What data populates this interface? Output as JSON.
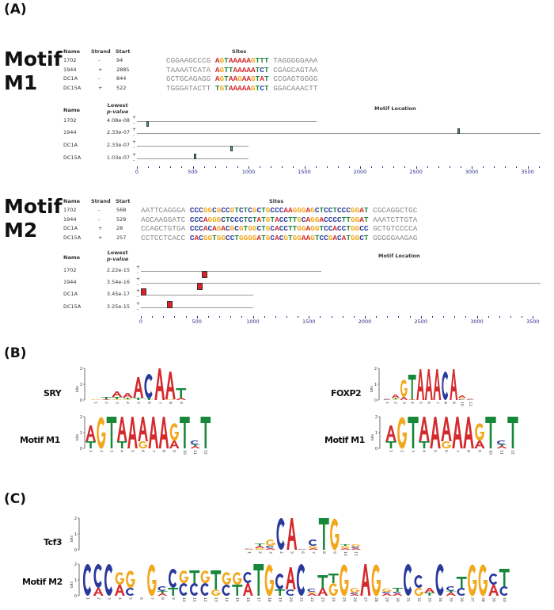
{
  "panel_labels": {
    "a": "(A)",
    "b": "(B)",
    "c": "(C)"
  },
  "colors": {
    "A": "#d42a2e",
    "C": "#2a3a9c",
    "G": "#f2a81d",
    "T": "#17873a",
    "m1_marker": "#3aa6a8",
    "m2_marker": "#e0202a",
    "axis_label": "#2a2a8a"
  },
  "site_table_headers": {
    "name": "Name",
    "strand": "Strand",
    "start": "Start",
    "sites": "Sites"
  },
  "location_headers": {
    "name": "Name",
    "lowest": "Lowest",
    "pvalue": "p-value",
    "motif_location": "Motif Location"
  },
  "strand_marks": {
    "plus": "+",
    "minus": "-"
  },
  "axis_ticks": [
    "0",
    "500",
    "1000",
    "1500",
    "2000",
    "2500",
    "3000",
    "3500"
  ],
  "motif_m1": {
    "title_line1": "Motif",
    "title_line2": "M1",
    "sites": [
      {
        "name": "1702",
        "strand": "-",
        "start": "94",
        "left": "CGGAAGCCCG",
        "core": "AGTAAAAAGTTT",
        "right": "TAGGGGGAAA"
      },
      {
        "name": "1944",
        "strand": "+",
        "start": "2885",
        "left": "TAAAATCATA",
        "core": "AGTTAAAAATCT",
        "right": "CGAGCAGTAA"
      },
      {
        "name": "DC1A",
        "strand": "-",
        "start": "844",
        "left": "GCTGCAGAGG",
        "core": "AGTAAGAAGTAT",
        "right": "CCGAGTGGGG"
      },
      {
        "name": "DC15A",
        "strand": "+",
        "start": "522",
        "left": "TGGGATACTT",
        "core": "TGTAAAAAGTCT",
        "right": "GGACAAACTT"
      }
    ],
    "locations": [
      {
        "name": "1702",
        "pvalue": "4.08e-08",
        "length": 1610,
        "position": 94,
        "strand": "-"
      },
      {
        "name": "1944",
        "pvalue": "2.33e-07",
        "length": 3800,
        "position": 2885,
        "strand": "+"
      },
      {
        "name": "DC1A",
        "pvalue": "2.33e-07",
        "length": 1000,
        "position": 844,
        "strand": "-"
      },
      {
        "name": "DC15A",
        "pvalue": "1.03e-07",
        "length": 1000,
        "position": 522,
        "strand": "+"
      }
    ]
  },
  "motif_m2": {
    "title_line1": "Motif",
    "title_line2": "M2",
    "sites": [
      {
        "name": "1702",
        "strand": "-",
        "start": "568",
        "left": "AATTCAGGGA",
        "core": "CCCGGCGCCGTCTCGCTGCCCAAGGGAGCTCCTCCCGGAT",
        "right": "CGCAGGCTGC"
      },
      {
        "name": "1944",
        "strand": "-",
        "start": "529",
        "left": "AGCAAGGATC",
        "core": "CCCAGGGCTCCCTCTATGTACCTTGCAGGACCCCTTGGAT",
        "right": "AAATCTTGTA"
      },
      {
        "name": "DC1A",
        "strand": "+",
        "start": "28",
        "left": "CCAGCTGTGA",
        "core": "CCCACAGACGCGTGGCTGCACCTTGGAGGTCCACCTGGCC",
        "right": "GCTGTCCCCA"
      },
      {
        "name": "DC15A",
        "strand": "+",
        "start": "257",
        "left": "CCTCCTCACC",
        "core": "CACGGTGGCCTGGGGATGCACGTGGAAGTCCGACATGGCT",
        "right": "GGGGGAAGAG"
      }
    ],
    "locations": [
      {
        "name": "1702",
        "pvalue": "2.22e-15",
        "length": 1610,
        "position": 568,
        "strand": "-"
      },
      {
        "name": "1944",
        "pvalue": "3.54e-16",
        "length": 3800,
        "position": 529,
        "strand": "-"
      },
      {
        "name": "DC1A",
        "pvalue": "3.45e-17",
        "length": 1000,
        "position": 28,
        "strand": "+"
      },
      {
        "name": "DC15A",
        "pvalue": "3.25e-15",
        "length": 1000,
        "position": 257,
        "strand": "+"
      }
    ]
  },
  "logo_axis": {
    "y_label": "bits",
    "y_ticks": [
      "0",
      "1",
      "2"
    ]
  },
  "logos": {
    "sry": {
      "label": "SRY",
      "columns": [
        [
          [
            "G",
            0.05
          ]
        ],
        [
          [
            "A",
            0.05
          ],
          [
            "T",
            0.15
          ]
        ],
        [
          [
            "G",
            0.05
          ],
          [
            "T",
            0.15
          ],
          [
            "A",
            0.35
          ]
        ],
        [
          [
            "G",
            0.05
          ],
          [
            "T",
            0.1
          ],
          [
            "A",
            0.3
          ]
        ],
        [
          [
            "T",
            0.15
          ],
          [
            "A",
            1.3
          ]
        ],
        [
          [
            "T",
            0.1
          ],
          [
            "C",
            1.55
          ]
        ],
        [
          [
            "A",
            2.0
          ]
        ],
        [
          [
            "G",
            0.05
          ],
          [
            "A",
            1.75
          ]
        ],
        [
          [
            "A",
            0.15
          ],
          [
            "T",
            0.6
          ]
        ]
      ]
    },
    "foxp2": {
      "label": "FOXP2",
      "columns": [
        [
          [
            "C",
            0.04
          ],
          [
            "A",
            0.05
          ]
        ],
        [
          [
            "G",
            0.05
          ],
          [
            "T",
            0.1
          ],
          [
            "A",
            0.2
          ]
        ],
        [
          [
            "A",
            0.2
          ],
          [
            "G",
            1.1
          ]
        ],
        [
          [
            "A",
            0.05
          ],
          [
            "T",
            1.55
          ]
        ],
        [
          [
            "A",
            1.95
          ]
        ],
        [
          [
            "A",
            1.95
          ]
        ],
        [
          [
            "A",
            1.95
          ]
        ],
        [
          [
            "C",
            1.8
          ]
        ],
        [
          [
            "A",
            1.95
          ]
        ],
        [
          [
            "C",
            0.05
          ],
          [
            "G",
            0.1
          ],
          [
            "A",
            0.15
          ]
        ],
        [
          [
            "C",
            0.03
          ],
          [
            "A",
            0.05
          ]
        ]
      ]
    },
    "m1_left": {
      "label": "Motif M1",
      "columns": [
        [
          [
            "T",
            0.45
          ],
          [
            "A",
            1.0
          ]
        ],
        [
          [
            "G",
            2.0
          ]
        ],
        [
          [
            "T",
            2.0
          ]
        ],
        [
          [
            "T",
            0.45
          ],
          [
            "A",
            1.55
          ]
        ],
        [
          [
            "A",
            2.0
          ]
        ],
        [
          [
            "G",
            0.45
          ],
          [
            "A",
            1.55
          ]
        ],
        [
          [
            "A",
            2.0
          ]
        ],
        [
          [
            "A",
            2.0
          ]
        ],
        [
          [
            "A",
            0.5
          ],
          [
            "G",
            1.1
          ]
        ],
        [
          [
            "T",
            2.0
          ]
        ],
        [
          [
            "A",
            0.15
          ],
          [
            "T",
            0.1
          ],
          [
            "C",
            0.25
          ]
        ],
        [
          [
            "T",
            2.0
          ]
        ]
      ]
    },
    "m1_right": {
      "label": "Motif M1",
      "columns": [
        [
          [
            "T",
            0.45
          ],
          [
            "A",
            1.0
          ]
        ],
        [
          [
            "G",
            2.0
          ]
        ],
        [
          [
            "T",
            2.0
          ]
        ],
        [
          [
            "T",
            0.45
          ],
          [
            "A",
            1.55
          ]
        ],
        [
          [
            "A",
            2.0
          ]
        ],
        [
          [
            "G",
            0.45
          ],
          [
            "A",
            1.55
          ]
        ],
        [
          [
            "A",
            2.0
          ]
        ],
        [
          [
            "A",
            2.0
          ]
        ],
        [
          [
            "A",
            0.5
          ],
          [
            "G",
            1.1
          ]
        ],
        [
          [
            "T",
            2.0
          ]
        ],
        [
          [
            "A",
            0.15
          ],
          [
            "T",
            0.1
          ],
          [
            "C",
            0.25
          ]
        ],
        [
          [
            "T",
            2.0
          ]
        ]
      ]
    },
    "tcf3": {
      "label": "Tcf3",
      "columns": [
        [
          [
            "G",
            0.02
          ],
          [
            "A",
            0.03
          ],
          [
            "C",
            0.02
          ]
        ],
        [
          [
            "G",
            0.1
          ],
          [
            "A",
            0.15
          ],
          [
            "T",
            0.15
          ]
        ],
        [
          [
            "A",
            0.1
          ],
          [
            "C",
            0.15
          ],
          [
            "G",
            0.4
          ]
        ],
        [
          [
            "C",
            2.0
          ]
        ],
        [
          [
            "A",
            2.0
          ]
        ],
        [
          [
            "C",
            0.03
          ],
          [
            "A",
            0.02
          ]
        ],
        [
          [
            "A",
            0.1
          ],
          [
            "G",
            0.15
          ],
          [
            "C",
            0.4
          ]
        ],
        [
          [
            "T",
            2.0
          ]
        ],
        [
          [
            "G",
            2.0
          ]
        ],
        [
          [
            "A",
            0.1
          ],
          [
            "G",
            0.15
          ],
          [
            "T",
            0.1
          ]
        ],
        [
          [
            "A",
            0.1
          ],
          [
            "C",
            0.1
          ],
          [
            "G",
            0.15
          ]
        ]
      ]
    },
    "m2": {
      "label": "Motif M2",
      "columns": [
        [
          [
            "C",
            2.0
          ]
        ],
        [
          [
            "A",
            0.5
          ],
          [
            "C",
            1.5
          ]
        ],
        [
          [
            "C",
            2.0
          ]
        ],
        [
          [
            "A",
            0.7
          ],
          [
            "G",
            0.8
          ]
        ],
        [
          [
            "C",
            0.5
          ],
          [
            "G",
            1.1
          ]
        ],
        [],
        [
          [
            "G",
            2.0
          ]
        ],
        [
          [
            "A",
            0.15
          ],
          [
            "T",
            0.15
          ],
          [
            "C",
            0.3
          ]
        ],
        [
          [
            "T",
            0.5
          ],
          [
            "C",
            1.2
          ]
        ],
        [
          [
            "C",
            0.8
          ],
          [
            "G",
            0.8
          ]
        ],
        [
          [
            "C",
            0.8
          ],
          [
            "T",
            0.8
          ]
        ],
        [
          [
            "C",
            0.8
          ],
          [
            "G",
            0.8
          ]
        ],
        [
          [
            "G",
            0.4
          ],
          [
            "T",
            1.2
          ]
        ],
        [
          [
            "C",
            0.7
          ],
          [
            "G",
            0.8
          ]
        ],
        [
          [
            "T",
            0.7
          ],
          [
            "G",
            0.8
          ]
        ],
        [
          [
            "A",
            0.8
          ],
          [
            "C",
            0.7
          ]
        ],
        [
          [
            "T",
            2.0
          ]
        ],
        [
          [
            "G",
            2.0
          ]
        ],
        [
          [
            "T",
            0.4
          ],
          [
            "C",
            1.0
          ]
        ],
        [
          [
            "C",
            0.4
          ],
          [
            "A",
            1.4
          ]
        ],
        [
          [
            "C",
            2.0
          ]
        ],
        [
          [
            "A",
            0.15
          ],
          [
            "G",
            0.1
          ],
          [
            "C",
            0.2
          ]
        ],
        [
          [
            "A",
            0.5
          ],
          [
            "T",
            0.8
          ]
        ],
        [
          [
            "G",
            0.8
          ],
          [
            "T",
            0.6
          ]
        ],
        [
          [
            "G",
            2.0
          ]
        ],
        [
          [
            "A",
            0.1
          ],
          [
            "C",
            0.1
          ],
          [
            "G",
            0.3
          ]
        ],
        [
          [
            "A",
            2.0
          ]
        ],
        [
          [
            "G",
            2.0
          ]
        ],
        [
          [
            "A",
            0.15
          ],
          [
            "C",
            0.1
          ],
          [
            "G",
            0.2
          ]
        ],
        [
          [
            "A",
            0.15
          ],
          [
            "C",
            0.1
          ],
          [
            "T",
            0.25
          ]
        ],
        [
          [
            "C",
            2.0
          ]
        ],
        [
          [
            "G",
            0.5
          ],
          [
            "C",
            0.8
          ]
        ],
        [
          [
            "T",
            0.2
          ],
          [
            "A",
            0.3
          ]
        ],
        [
          [
            "C",
            2.0
          ]
        ],
        [
          [
            "A",
            0.2
          ],
          [
            "T",
            0.1
          ],
          [
            "C",
            0.3
          ]
        ],
        [
          [
            "C",
            0.5
          ],
          [
            "T",
            0.7
          ]
        ],
        [
          [
            "G",
            2.0
          ]
        ],
        [
          [
            "G",
            2.0
          ]
        ],
        [
          [
            "A",
            0.7
          ],
          [
            "C",
            0.7
          ]
        ],
        [
          [
            "C",
            0.6
          ],
          [
            "T",
            1.1
          ]
        ]
      ]
    }
  }
}
